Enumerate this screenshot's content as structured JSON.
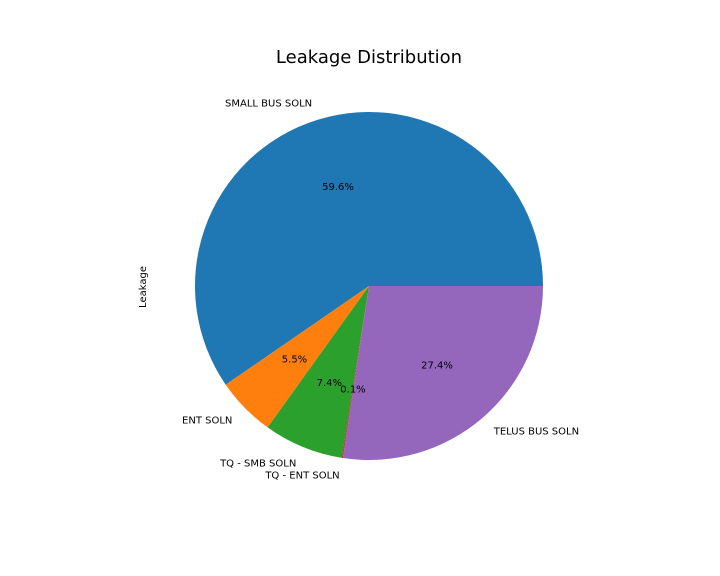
{
  "chart_data": {
    "type": "pie",
    "title": "Leakage Distribution",
    "ylabel": "Leakage",
    "start_angle_deg": 0,
    "direction": "counterclockwise",
    "slices": [
      {
        "label": "SMALL BUS SOLN",
        "percent": 59.6,
        "pct_label": "59.6%",
        "color": "#1f77b4"
      },
      {
        "label": "ENT SOLN",
        "percent": 5.5,
        "pct_label": "5.5%",
        "color": "#ff7f0e"
      },
      {
        "label": "TQ - SMB SOLN",
        "percent": 7.4,
        "pct_label": "7.4%",
        "color": "#2ca02c"
      },
      {
        "label": "TQ - ENT SOLN",
        "percent": 0.1,
        "pct_label": "0.1%",
        "color": "#d62728"
      },
      {
        "label": "TELUS BUS SOLN",
        "percent": 27.4,
        "pct_label": "27.4%",
        "color": "#9467bd"
      }
    ]
  }
}
